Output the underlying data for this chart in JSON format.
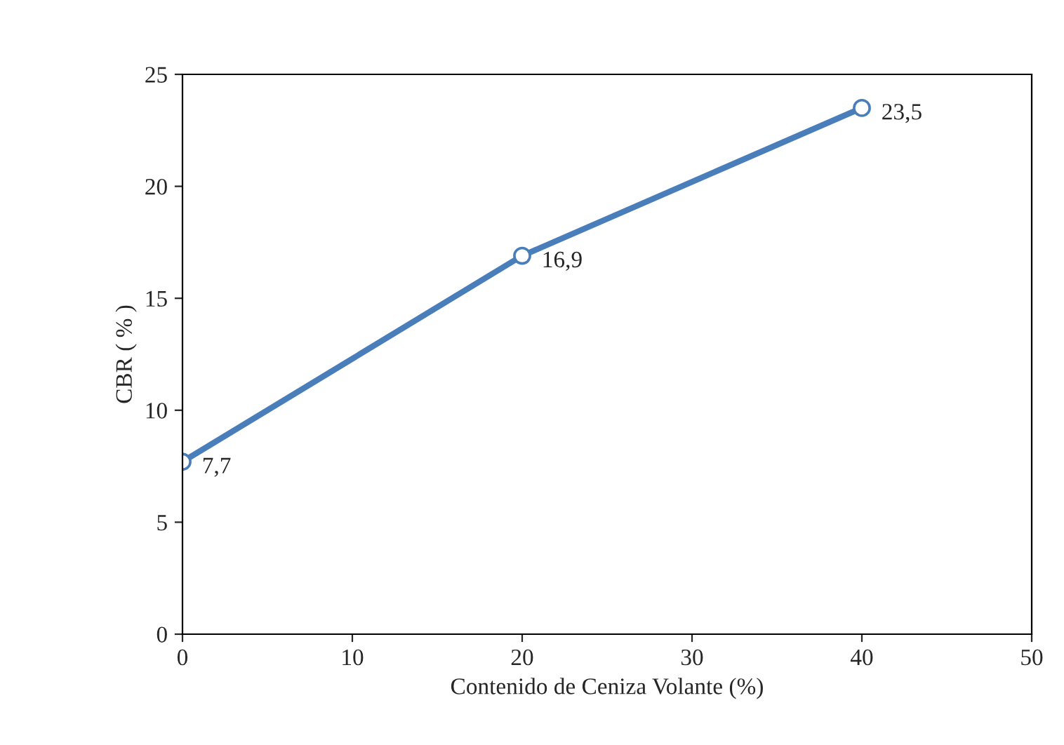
{
  "chart_data": {
    "type": "line",
    "xlabel": "Contenido de Ceniza Volante (%)",
    "ylabel": "CBR ( % )",
    "x": [
      0,
      20,
      40
    ],
    "series": [
      {
        "color": "#4a7ebb",
        "values": [
          7.7,
          16.9,
          23.5
        ],
        "value_labels": [
          "7,7",
          "16,9",
          "23,5"
        ]
      }
    ],
    "xlim": [
      0,
      50
    ],
    "xticks": [
      0,
      10,
      20,
      30,
      40,
      50
    ],
    "ylim": [
      0,
      25
    ],
    "yticks": [
      0,
      5,
      10,
      15,
      20,
      25
    ],
    "grid": false,
    "legend": false,
    "marker": "circle",
    "line_style": "solid"
  }
}
